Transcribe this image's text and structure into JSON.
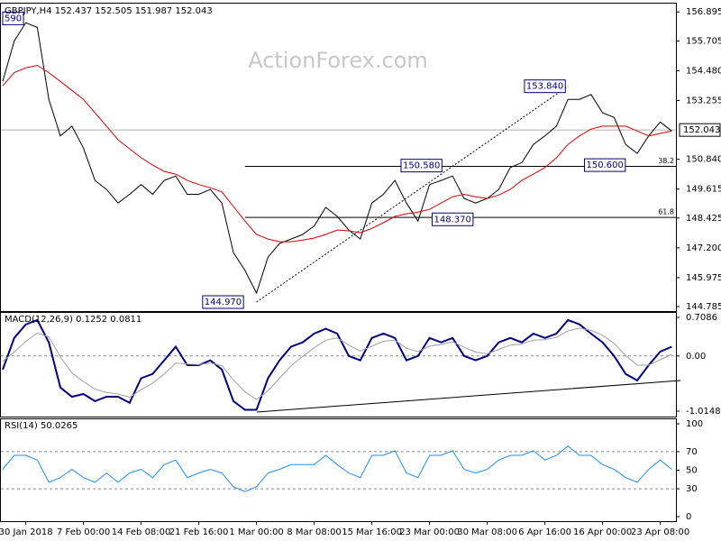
{
  "chart_data": [
    {
      "type": "line",
      "title": "GBPJPY,H4  152.437 152.505 151.987 152.043",
      "watermark": "ActionForex.com",
      "ylim": [
        144.6,
        157.2
      ],
      "yticks": [
        156.895,
        155.705,
        {
          "value": 154.48,
          "label": "154.480"
        },
        153.255,
        {
          "value": 150.84,
          "label": "150.840"
        },
        149.615,
        148.425,
        {
          "value": 147.2,
          "label": "147.200"
        },
        145.975,
        144.785
      ],
      "last_price": 152.043,
      "series": [
        {
          "color": "#000000",
          "values": [
            154.04,
            155.7,
            156.45,
            156.26,
            153.3,
            151.8,
            152.2,
            151.3,
            149.97,
            149.6,
            149.04,
            149.4,
            149.8,
            149.4,
            149.97,
            150.15,
            149.4,
            149.4,
            149.6,
            149.04,
            147.0,
            146.27,
            145.34,
            146.82,
            147.38,
            147.56,
            147.75,
            148.1,
            148.86,
            148.49,
            147.93,
            147.56,
            149.04,
            149.4,
            149.97,
            149.04,
            148.3,
            149.8,
            149.97,
            150.15,
            149.23,
            149.04,
            149.23,
            149.6,
            150.5,
            150.7,
            151.45,
            151.8,
            152.2,
            153.3,
            153.3,
            153.5,
            152.75,
            152.56,
            151.45,
            151.08,
            151.8,
            152.37,
            152.0
          ]
        },
        {
          "color": "#dd0000",
          "values": [
            153.86,
            154.4,
            154.6,
            154.7,
            154.4,
            154.04,
            153.67,
            153.3,
            152.75,
            152.2,
            151.64,
            151.27,
            150.9,
            150.6,
            150.34,
            150.23,
            149.97,
            149.8,
            149.67,
            149.5,
            148.9,
            148.3,
            147.75,
            147.56,
            147.45,
            147.45,
            147.52,
            147.6,
            147.75,
            147.93,
            147.9,
            147.82,
            148.0,
            148.23,
            148.49,
            148.6,
            148.67,
            148.78,
            149.04,
            149.3,
            149.4,
            149.3,
            149.23,
            149.37,
            149.6,
            149.97,
            150.23,
            150.5,
            150.9,
            151.45,
            151.8,
            152.08,
            152.2,
            152.2,
            152.2,
            152.0,
            151.8,
            151.9,
            152.0
          ]
        }
      ],
      "annotations": [
        {
          "label": "590",
          "value": 156.63,
          "x": 0.9
        },
        {
          "label": "144.970",
          "value": 144.97,
          "x": 19.1
        },
        {
          "label": "150.580",
          "value": 150.58,
          "x": 36.3
        },
        {
          "label": "148.370",
          "value": 148.37,
          "x": 39
        },
        {
          "label": "153.840",
          "value": 153.84,
          "x": 47
        },
        {
          "label": "150.600",
          "value": 150.6,
          "x": 52.2
        }
      ],
      "fib_levels": [
        {
          "label": "38.2",
          "value": 150.55,
          "x": 21
        },
        {
          "label": "61.8",
          "value": 148.45,
          "x": 21
        }
      ],
      "trend_line": {
        "x": [
          22,
          49
        ],
        "y": [
          144.97,
          153.84
        ]
      }
    },
    {
      "type": "line",
      "title": "MACD(12,26,9) 0.1252 0.0811",
      "ylim": [
        -1.114,
        0.7914
      ],
      "yticks": [
        0.7086,
        {
          "value": 0,
          "label": "0.00"
        },
        -1.0148
      ],
      "levels": [
        0
      ],
      "series": [
        {
          "color": "#000080",
          "width": 2,
          "values": [
            -0.25,
            0.33,
            0.58,
            0.66,
            0.25,
            -0.58,
            -0.75,
            -0.7,
            -0.83,
            -0.75,
            -0.75,
            -0.86,
            -0.41,
            -0.33,
            -0.08,
            0.17,
            -0.17,
            -0.17,
            -0.08,
            -0.25,
            -0.83,
            -0.99,
            -0.99,
            -0.41,
            -0.08,
            0.17,
            0.25,
            0.41,
            0.5,
            0.41,
            0,
            -0.08,
            0.33,
            0.41,
            0.33,
            -0.08,
            0,
            0.33,
            0.25,
            0.33,
            0,
            -0.08,
            0,
            0.25,
            0.33,
            0.25,
            0.41,
            0.33,
            0.41,
            0.66,
            0.58,
            0.41,
            0.25,
            0,
            -0.33,
            -0.45,
            -0.17,
            0.08,
            0.17
          ]
        },
        {
          "color": "#a0a0a0",
          "width": 1,
          "values": [
            -0.1,
            0.07,
            0.27,
            0.42,
            0.35,
            -0.02,
            -0.31,
            -0.47,
            -0.61,
            -0.67,
            -0.7,
            -0.76,
            -0.62,
            -0.5,
            -0.33,
            -0.13,
            -0.15,
            -0.16,
            -0.13,
            -0.18,
            -0.44,
            -0.66,
            -0.8,
            -0.64,
            -0.41,
            -0.18,
            -0.01,
            0.15,
            0.29,
            0.33,
            0.2,
            0.09,
            0.18,
            0.27,
            0.29,
            0.14,
            0.08,
            0.18,
            0.21,
            0.26,
            0.16,
            0.07,
            0.04,
            0.12,
            0.2,
            0.22,
            0.29,
            0.3,
            0.34,
            0.46,
            0.51,
            0.47,
            0.38,
            0.23,
            0.01,
            -0.17,
            -0.17,
            -0.07,
            0.03
          ]
        }
      ]
    },
    {
      "type": "line",
      "title": "RSI(14) 50.0265",
      "ylim": [
        -4.9,
        104.9
      ],
      "yticks": [
        100,
        70,
        50,
        30,
        0
      ],
      "levels": [
        70,
        30
      ],
      "categories": [
        null,
        null,
        "30 Jan 2018",
        null,
        null,
        null,
        null,
        "7 Feb 00:00",
        null,
        null,
        null,
        null,
        "14 Feb 08:00",
        null,
        null,
        null,
        null,
        "21 Feb 16:00",
        null,
        null,
        null,
        null,
        "1 Mar 00:00",
        null,
        null,
        null,
        null,
        "8 Mar 08:00",
        null,
        null,
        null,
        null,
        "15 Mar 16:00",
        null,
        null,
        null,
        null,
        "23 Mar 00:00",
        null,
        null,
        null,
        null,
        "30 Mar 08:00",
        null,
        null,
        null,
        null,
        "6 Apr 16:00",
        null,
        null,
        null,
        null,
        "16 Apr 00:00",
        null,
        null,
        null,
        null,
        "23 Apr 08:00",
        null
      ],
      "series": [
        {
          "color": "#1e90ff",
          "width": 1,
          "values": [
            51,
            66,
            66,
            61,
            37,
            42,
            51,
            42,
            37,
            47,
            37,
            47,
            51,
            42,
            56,
            61,
            42,
            47,
            51,
            47,
            32,
            27,
            32,
            47,
            51,
            56,
            56,
            56,
            66,
            56,
            47,
            42,
            66,
            66,
            71,
            47,
            42,
            66,
            66,
            71,
            51,
            47,
            51,
            61,
            66,
            66,
            71,
            61,
            66,
            76,
            66,
            66,
            56,
            51,
            42,
            37,
            51,
            61,
            51
          ]
        }
      ]
    }
  ]
}
